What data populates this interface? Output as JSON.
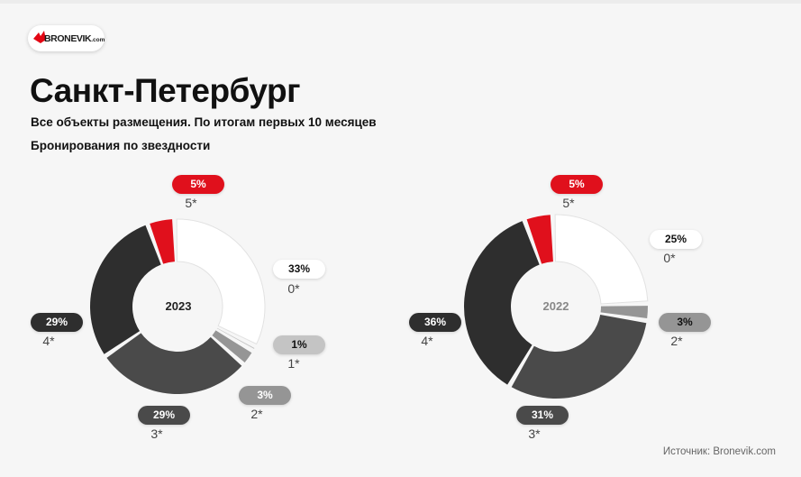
{
  "brand": {
    "name": "BRONEVIK",
    "domain": ".com",
    "color": "#e30613"
  },
  "title": "Санкт-Петербург",
  "subtitle": "Все объекты размещения. По итогам первых 10 месяцев",
  "subheading": "Бронирования по звездности",
  "source": "Источник: Bronevik.com",
  "chart_data": [
    {
      "type": "pie",
      "center_label": "2023",
      "categories": [
        "0*",
        "1*",
        "2*",
        "3*",
        "4*",
        "5*"
      ],
      "values": [
        33,
        1,
        3,
        29,
        29,
        5
      ],
      "value_labels": [
        "33%",
        "1%",
        "3%",
        "29%",
        "29%",
        "5%"
      ],
      "colors": [
        "#ffffff",
        "#c4c4c4",
        "#959595",
        "#4a4a4a",
        "#2e2e2e",
        "#e0101c"
      ],
      "center_color": "#222222"
    },
    {
      "type": "pie",
      "center_label": "2022",
      "categories": [
        "0*",
        "2*",
        "3*",
        "4*",
        "5*"
      ],
      "values": [
        25,
        3,
        31,
        36,
        5
      ],
      "value_labels": [
        "25%",
        "3%",
        "31%",
        "36%",
        "5%"
      ],
      "colors": [
        "#ffffff",
        "#959595",
        "#4a4a4a",
        "#2e2e2e",
        "#e0101c"
      ],
      "center_color": "#888888"
    }
  ]
}
